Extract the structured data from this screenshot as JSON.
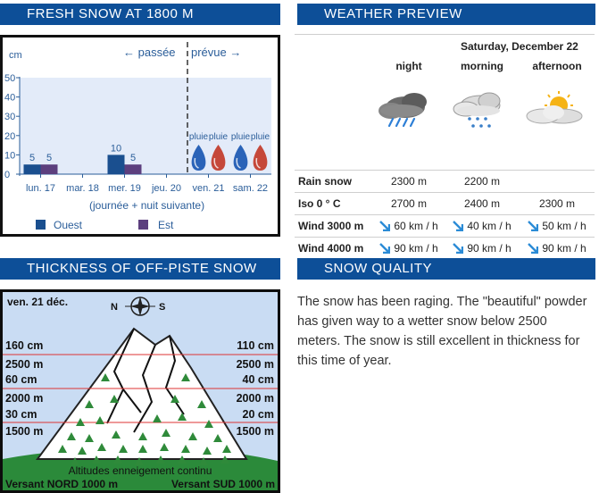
{
  "sections": {
    "fresh_snow_title": "FRESH SNOW AT 1800 M",
    "weather_title": "WEATHER PREVIEW",
    "thickness_title": "THICKNESS OF OFF-PISTE SNOW",
    "quality_title": "SNOW QUALITY"
  },
  "fresh_snow": {
    "unit_label": "cm",
    "past_label": "← passée",
    "forecast_label": "prévue →",
    "footnote": "(journée + nuit suivante)",
    "rain_label": "pluie",
    "legend": [
      {
        "name": "Ouest",
        "color": "#1a4f8f"
      },
      {
        "name": "Est",
        "color": "#5c3f7e"
      }
    ]
  },
  "chart_data": {
    "type": "bar",
    "categories": [
      "lun. 17",
      "mar. 18",
      "mer. 19",
      "jeu. 20",
      "ven. 21",
      "sam. 22"
    ],
    "series": [
      {
        "name": "Ouest",
        "values": [
          5,
          null,
          10,
          null,
          null,
          null
        ]
      },
      {
        "name": "Est",
        "values": [
          5,
          null,
          5,
          null,
          null,
          null
        ]
      }
    ],
    "ylabel": "cm",
    "ylim": [
      0,
      50
    ],
    "yticks": [
      0,
      10,
      20,
      30,
      40,
      50
    ],
    "forecast_start_index": 4,
    "legend_position": "bottom"
  },
  "weather": {
    "date": "Saturday, December 22",
    "periods": [
      {
        "label": "night",
        "icon": "rain-heavy-icon"
      },
      {
        "label": "morning",
        "icon": "snow-showers-icon"
      },
      {
        "label": "afternoon",
        "icon": "partly-cloudy-icon"
      }
    ],
    "rows": [
      {
        "label": "Rain snow",
        "values": [
          "2300 m",
          "2200 m",
          ""
        ]
      },
      {
        "label": "Iso 0 ° C",
        "values": [
          "2700 m",
          "2400 m",
          "2300 m"
        ]
      },
      {
        "label": "Wind 3000 m",
        "values": [
          "60 km / h",
          "40 km / h",
          "50 km / h"
        ],
        "arrows": true
      },
      {
        "label": "Wind 4000 m",
        "values": [
          "90 km / h",
          "90 km / h",
          "90 km / h"
        ],
        "arrows": true
      }
    ]
  },
  "thickness": {
    "date": "ven. 21 déc.",
    "compass_left": "N",
    "compass_right": "S",
    "left_labels": [
      "160 cm",
      "2500 m",
      "60 cm",
      "2000 m",
      "30 cm",
      "1500 m"
    ],
    "right_labels": [
      "110 cm",
      "2500 m",
      "40 cm",
      "2000 m",
      "20 cm",
      "1500 m"
    ],
    "continuous_label": "Altitudes enneigement continu",
    "north_label": "Versant NORD 1000 m",
    "south_label": "Versant SUD 1000 m"
  },
  "quality": {
    "text": "The snow has been raging. The \"beautiful\" powder has given way to a wetter snow below 2500 meters. The snow is still excellent in thickness for this time of year."
  }
}
